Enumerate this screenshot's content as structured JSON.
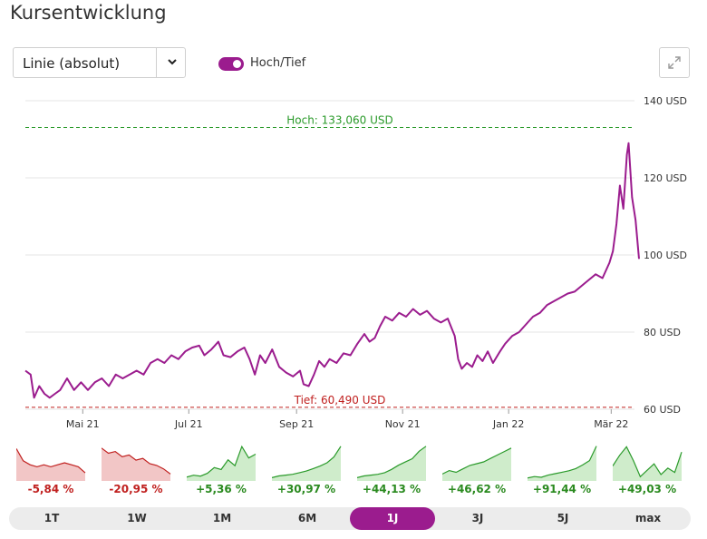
{
  "title": "Kursentwicklung",
  "chart_type_select": {
    "value": "Linie (absolut)"
  },
  "toggle": {
    "label": "Hoch/Tief",
    "on": true
  },
  "icons": {
    "dropdown": "chevron-down-icon",
    "fullscreen": "expand-icon"
  },
  "colors": {
    "line": "#9b1c8e",
    "high": "#2a9a2a",
    "low": "#c0201f",
    "accent": "#9b1c8e"
  },
  "chart_data": {
    "type": "line",
    "title": "",
    "xlabel": "",
    "ylabel": "",
    "ylim": [
      60,
      140
    ],
    "yticks": [
      60,
      80,
      100,
      120,
      140
    ],
    "ytick_labels": [
      "60 USD",
      "80 USD",
      "100 USD",
      "120 USD",
      "140 USD"
    ],
    "xtick_labels": [
      "Mai 21",
      "Jul 21",
      "Sep 21",
      "Nov 21",
      "Jan 22",
      "Mär 22"
    ],
    "xtick_dates": [
      "2021-05-01",
      "2021-07-01",
      "2021-09-01",
      "2021-11-01",
      "2022-01-01",
      "2022-03-01"
    ],
    "grid": true,
    "high": {
      "value": 133.06,
      "label": "Hoch: 133,060 USD"
    },
    "low": {
      "value": 60.49,
      "label": "Tief: 60,490 USD"
    },
    "series": [
      {
        "values": [
          [
            "2021-03-29",
            70.0
          ],
          [
            "2021-04-01",
            69.0
          ],
          [
            "2021-04-03",
            63.0
          ],
          [
            "2021-04-06",
            66.0
          ],
          [
            "2021-04-09",
            64.0
          ],
          [
            "2021-04-12",
            63.0
          ],
          [
            "2021-04-15",
            64.0
          ],
          [
            "2021-04-18",
            65.0
          ],
          [
            "2021-04-22",
            68.0
          ],
          [
            "2021-04-26",
            65.0
          ],
          [
            "2021-04-30",
            67.0
          ],
          [
            "2021-05-04",
            65.0
          ],
          [
            "2021-05-08",
            67.0
          ],
          [
            "2021-05-12",
            68.0
          ],
          [
            "2021-05-16",
            66.0
          ],
          [
            "2021-05-20",
            69.0
          ],
          [
            "2021-05-24",
            68.0
          ],
          [
            "2021-05-28",
            69.0
          ],
          [
            "2021-06-01",
            70.0
          ],
          [
            "2021-06-05",
            69.0
          ],
          [
            "2021-06-09",
            72.0
          ],
          [
            "2021-06-13",
            73.0
          ],
          [
            "2021-06-17",
            72.0
          ],
          [
            "2021-06-21",
            74.0
          ],
          [
            "2021-06-25",
            73.0
          ],
          [
            "2021-06-29",
            75.0
          ],
          [
            "2021-07-03",
            76.0
          ],
          [
            "2021-07-07",
            76.5
          ],
          [
            "2021-07-10",
            74.0
          ],
          [
            "2021-07-14",
            75.5
          ],
          [
            "2021-07-18",
            77.5
          ],
          [
            "2021-07-21",
            74.0
          ],
          [
            "2021-07-25",
            73.5
          ],
          [
            "2021-07-29",
            75.0
          ],
          [
            "2021-08-02",
            76.0
          ],
          [
            "2021-08-05",
            73.0
          ],
          [
            "2021-08-08",
            69.0
          ],
          [
            "2021-08-11",
            74.0
          ],
          [
            "2021-08-14",
            72.0
          ],
          [
            "2021-08-18",
            75.5
          ],
          [
            "2021-08-22",
            71.0
          ],
          [
            "2021-08-26",
            69.5
          ],
          [
            "2021-08-30",
            68.5
          ],
          [
            "2021-09-03",
            70.0
          ],
          [
            "2021-09-05",
            66.5
          ],
          [
            "2021-09-08",
            66.0
          ],
          [
            "2021-09-11",
            69.0
          ],
          [
            "2021-09-14",
            72.5
          ],
          [
            "2021-09-17",
            71.0
          ],
          [
            "2021-09-20",
            73.0
          ],
          [
            "2021-09-24",
            72.0
          ],
          [
            "2021-09-28",
            74.5
          ],
          [
            "2021-10-02",
            74.0
          ],
          [
            "2021-10-06",
            77.0
          ],
          [
            "2021-10-10",
            79.5
          ],
          [
            "2021-10-13",
            77.5
          ],
          [
            "2021-10-16",
            78.5
          ],
          [
            "2021-10-19",
            81.5
          ],
          [
            "2021-10-22",
            84.0
          ],
          [
            "2021-10-26",
            83.0
          ],
          [
            "2021-10-30",
            85.0
          ],
          [
            "2021-11-03",
            84.0
          ],
          [
            "2021-11-07",
            86.0
          ],
          [
            "2021-11-11",
            84.5
          ],
          [
            "2021-11-15",
            85.5
          ],
          [
            "2021-11-19",
            83.5
          ],
          [
            "2021-11-23",
            82.5
          ],
          [
            "2021-11-27",
            83.5
          ],
          [
            "2021-12-01",
            79.0
          ],
          [
            "2021-12-03",
            73.0
          ],
          [
            "2021-12-05",
            70.5
          ],
          [
            "2021-12-08",
            72.0
          ],
          [
            "2021-12-11",
            71.0
          ],
          [
            "2021-12-14",
            74.0
          ],
          [
            "2021-12-17",
            72.5
          ],
          [
            "2021-12-20",
            75.0
          ],
          [
            "2021-12-23",
            72.0
          ],
          [
            "2021-12-27",
            75.0
          ],
          [
            "2021-12-30",
            77.0
          ],
          [
            "2022-01-03",
            79.0
          ],
          [
            "2022-01-07",
            80.0
          ],
          [
            "2022-01-11",
            82.0
          ],
          [
            "2022-01-15",
            84.0
          ],
          [
            "2022-01-19",
            85.0
          ],
          [
            "2022-01-23",
            87.0
          ],
          [
            "2022-01-27",
            88.0
          ],
          [
            "2022-01-31",
            89.0
          ],
          [
            "2022-02-04",
            90.0
          ],
          [
            "2022-02-08",
            90.5
          ],
          [
            "2022-02-12",
            92.0
          ],
          [
            "2022-02-16",
            93.5
          ],
          [
            "2022-02-20",
            95.0
          ],
          [
            "2022-02-24",
            94.0
          ],
          [
            "2022-02-28",
            98.0
          ],
          [
            "2022-03-02",
            101.0
          ],
          [
            "2022-03-04",
            108.0
          ],
          [
            "2022-03-06",
            118.0
          ],
          [
            "2022-03-08",
            112.0
          ],
          [
            "2022-03-10",
            126.0
          ],
          [
            "2022-03-11",
            129.0
          ],
          [
            "2022-03-13",
            115.0
          ],
          [
            "2022-03-15",
            109.0
          ],
          [
            "2022-03-17",
            99.0
          ]
        ]
      }
    ]
  },
  "performance": [
    {
      "label": "-5,84 %",
      "trend": "neg",
      "values": [
        66,
        60,
        58,
        57,
        58,
        57,
        58,
        59,
        58,
        57,
        54
      ]
    },
    {
      "label": "-20,95 %",
      "trend": "neg",
      "values": [
        93,
        90,
        91,
        88,
        89,
        86,
        87,
        84,
        83,
        81,
        78
      ]
    },
    {
      "label": "+5,36 %",
      "trend": "pos",
      "values": [
        60,
        62,
        61,
        64,
        70,
        68,
        78,
        72,
        92,
        80,
        84
      ]
    },
    {
      "label": "+30,97 %",
      "trend": "pos",
      "values": [
        74,
        76,
        77,
        78,
        80,
        82,
        85,
        88,
        92,
        99,
        112
      ]
    },
    {
      "label": "+44,13 %",
      "trend": "pos",
      "values": [
        70,
        72,
        73,
        74,
        76,
        80,
        85,
        89,
        93,
        102,
        108
      ]
    },
    {
      "label": "+46,62 %",
      "trend": "pos",
      "values": [
        69,
        71,
        70,
        72,
        74,
        75,
        76,
        78,
        80,
        82,
        84
      ]
    },
    {
      "label": "+91,44 %",
      "trend": "pos",
      "values": [
        48,
        50,
        49,
        52,
        54,
        56,
        58,
        61,
        66,
        72,
        92
      ]
    },
    {
      "label": "+49,03 %",
      "trend": "pos",
      "values": [
        80,
        90,
        98,
        85,
        70,
        76,
        82,
        72,
        78,
        74,
        93
      ]
    }
  ],
  "ranges": [
    {
      "label": "1T",
      "active": false
    },
    {
      "label": "1W",
      "active": false
    },
    {
      "label": "1M",
      "active": false
    },
    {
      "label": "6M",
      "active": false
    },
    {
      "label": "1J",
      "active": true
    },
    {
      "label": "3J",
      "active": false
    },
    {
      "label": "5J",
      "active": false
    },
    {
      "label": "max",
      "active": false
    }
  ]
}
